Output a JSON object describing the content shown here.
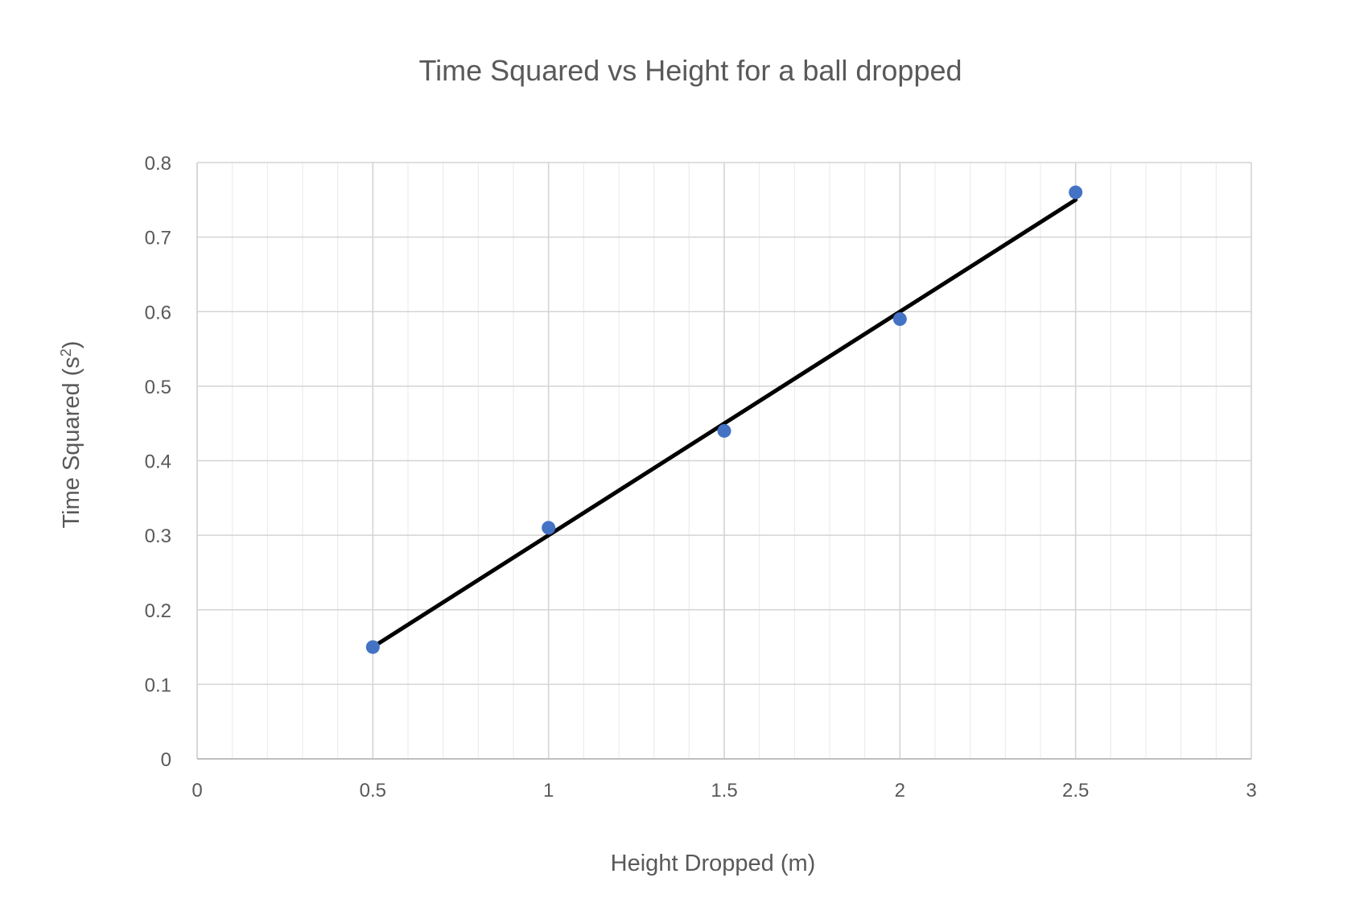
{
  "chart_data": {
    "type": "scatter",
    "title": "Time Squared vs Height for a ball dropped",
    "xlabel": "Height Dropped (m)",
    "ylabel_main": "Time Squared (s",
    "ylabel_sup": "2",
    "ylabel_end": ")",
    "xlim": [
      0,
      3
    ],
    "ylim": [
      0,
      0.8
    ],
    "x_ticks": [
      "0",
      "0.5",
      "1",
      "1.5",
      "2",
      "2.5",
      "3"
    ],
    "y_ticks": [
      "0",
      "0.1",
      "0.2",
      "0.3",
      "0.4",
      "0.5",
      "0.6",
      "0.7",
      "0.8"
    ],
    "grid": true,
    "legend": "none",
    "series": [
      {
        "x": [
          0.5,
          1,
          1.5,
          2,
          2.5
        ],
        "y": [
          0.15,
          0.31,
          0.44,
          0.59,
          0.76
        ],
        "color": "#4472C4"
      }
    ],
    "trendline": {
      "type": "linear",
      "x": [
        0.5,
        2.5
      ],
      "y": [
        0.15,
        0.75
      ],
      "color": "#000000"
    }
  }
}
